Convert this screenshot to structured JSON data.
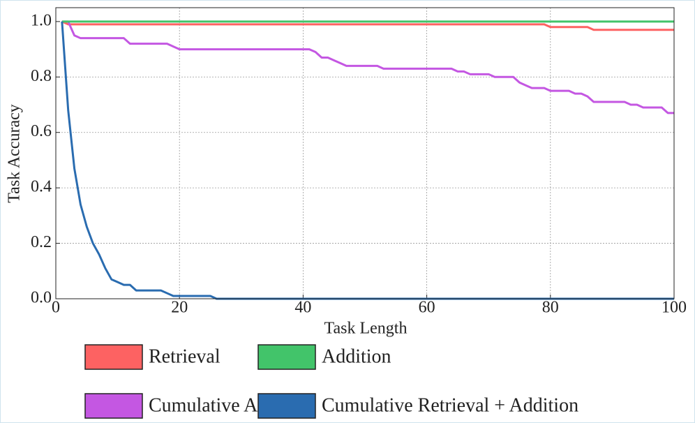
{
  "chart_data": {
    "type": "line",
    "x_label": "Task Length",
    "y_label": "Task Accuracy",
    "x": [
      1,
      2,
      3,
      4,
      5,
      6,
      7,
      8,
      9,
      10,
      11,
      12,
      13,
      14,
      15,
      16,
      17,
      18,
      19,
      20,
      21,
      22,
      23,
      24,
      25,
      26,
      27,
      28,
      29,
      30,
      31,
      32,
      33,
      34,
      35,
      36,
      37,
      38,
      39,
      40,
      41,
      42,
      43,
      44,
      45,
      46,
      47,
      48,
      49,
      50,
      51,
      52,
      53,
      54,
      55,
      56,
      57,
      58,
      59,
      60,
      61,
      62,
      63,
      64,
      65,
      66,
      67,
      68,
      69,
      70,
      71,
      72,
      73,
      74,
      75,
      76,
      77,
      78,
      79,
      80,
      81,
      82,
      83,
      84,
      85,
      86,
      87,
      88,
      89,
      90,
      91,
      92,
      93,
      94,
      95,
      96,
      97,
      98,
      99,
      100
    ],
    "series": [
      {
        "name": "Retrieval",
        "color": "#fd6262",
        "values": [
          1.0,
          0.99,
          0.99,
          0.99,
          0.99,
          0.99,
          0.99,
          0.99,
          0.99,
          0.99,
          0.99,
          0.99,
          0.99,
          0.99,
          0.99,
          0.99,
          0.99,
          0.99,
          0.99,
          0.99,
          0.99,
          0.99,
          0.99,
          0.99,
          0.99,
          0.99,
          0.99,
          0.99,
          0.99,
          0.99,
          0.99,
          0.99,
          0.99,
          0.99,
          0.99,
          0.99,
          0.99,
          0.99,
          0.99,
          0.99,
          0.99,
          0.99,
          0.99,
          0.99,
          0.99,
          0.99,
          0.99,
          0.99,
          0.99,
          0.99,
          0.99,
          0.99,
          0.99,
          0.99,
          0.99,
          0.99,
          0.99,
          0.99,
          0.99,
          0.99,
          0.99,
          0.99,
          0.99,
          0.99,
          0.99,
          0.99,
          0.99,
          0.99,
          0.99,
          0.99,
          0.99,
          0.99,
          0.99,
          0.99,
          0.99,
          0.99,
          0.99,
          0.99,
          0.99,
          0.98,
          0.98,
          0.98,
          0.98,
          0.98,
          0.98,
          0.98,
          0.97,
          0.97,
          0.97,
          0.97,
          0.97,
          0.97,
          0.97,
          0.97,
          0.97,
          0.97,
          0.97,
          0.97,
          0.97,
          0.97
        ]
      },
      {
        "name": "Cumulative Addition",
        "color": "#c457e2",
        "values": [
          1.0,
          1.0,
          0.95,
          0.94,
          0.94,
          0.94,
          0.94,
          0.94,
          0.94,
          0.94,
          0.94,
          0.92,
          0.92,
          0.92,
          0.92,
          0.92,
          0.92,
          0.92,
          0.91,
          0.9,
          0.9,
          0.9,
          0.9,
          0.9,
          0.9,
          0.9,
          0.9,
          0.9,
          0.9,
          0.9,
          0.9,
          0.9,
          0.9,
          0.9,
          0.9,
          0.9,
          0.9,
          0.9,
          0.9,
          0.9,
          0.9,
          0.89,
          0.87,
          0.87,
          0.86,
          0.85,
          0.84,
          0.84,
          0.84,
          0.84,
          0.84,
          0.84,
          0.83,
          0.83,
          0.83,
          0.83,
          0.83,
          0.83,
          0.83,
          0.83,
          0.83,
          0.83,
          0.83,
          0.83,
          0.82,
          0.82,
          0.81,
          0.81,
          0.81,
          0.81,
          0.8,
          0.8,
          0.8,
          0.8,
          0.78,
          0.77,
          0.76,
          0.76,
          0.76,
          0.75,
          0.75,
          0.75,
          0.75,
          0.74,
          0.74,
          0.73,
          0.71,
          0.71,
          0.71,
          0.71,
          0.71,
          0.71,
          0.7,
          0.7,
          0.69,
          0.69,
          0.69,
          0.69,
          0.67,
          0.67
        ]
      },
      {
        "name": "Addition",
        "color": "#42c46a",
        "values": [
          1.0,
          1.0,
          1.0,
          1.0,
          1.0,
          1.0,
          1.0,
          1.0,
          1.0,
          1.0,
          1.0,
          1.0,
          1.0,
          1.0,
          1.0,
          1.0,
          1.0,
          1.0,
          1.0,
          1.0,
          1.0,
          1.0,
          1.0,
          1.0,
          1.0,
          1.0,
          1.0,
          1.0,
          1.0,
          1.0,
          1.0,
          1.0,
          1.0,
          1.0,
          1.0,
          1.0,
          1.0,
          1.0,
          1.0,
          1.0,
          1.0,
          1.0,
          1.0,
          1.0,
          1.0,
          1.0,
          1.0,
          1.0,
          1.0,
          1.0,
          1.0,
          1.0,
          1.0,
          1.0,
          1.0,
          1.0,
          1.0,
          1.0,
          1.0,
          1.0,
          1.0,
          1.0,
          1.0,
          1.0,
          1.0,
          1.0,
          1.0,
          1.0,
          1.0,
          1.0,
          1.0,
          1.0,
          1.0,
          1.0,
          1.0,
          1.0,
          1.0,
          1.0,
          1.0,
          1.0,
          1.0,
          1.0,
          1.0,
          1.0,
          1.0,
          1.0,
          1.0,
          1.0,
          1.0,
          1.0,
          1.0,
          1.0,
          1.0,
          1.0,
          1.0,
          1.0,
          1.0,
          1.0,
          1.0,
          1.0
        ]
      },
      {
        "name": "Cumulative Retrieval + Addition",
        "color": "#2a6cb0",
        "values": [
          1.0,
          0.68,
          0.47,
          0.34,
          0.26,
          0.2,
          0.16,
          0.11,
          0.07,
          0.06,
          0.05,
          0.05,
          0.03,
          0.03,
          0.03,
          0.03,
          0.03,
          0.02,
          0.01,
          0.01,
          0.01,
          0.01,
          0.01,
          0.01,
          0.01,
          0,
          0,
          0,
          0,
          0,
          0,
          0,
          0,
          0,
          0,
          0,
          0,
          0,
          0,
          0,
          0,
          0,
          0,
          0,
          0,
          0,
          0,
          0,
          0,
          0,
          0,
          0,
          0,
          0,
          0,
          0,
          0,
          0,
          0,
          0,
          0,
          0,
          0,
          0,
          0,
          0,
          0,
          0,
          0,
          0,
          0,
          0,
          0,
          0,
          0,
          0,
          0,
          0,
          0,
          0,
          0,
          0,
          0,
          0,
          0,
          0,
          0,
          0,
          0,
          0,
          0,
          0,
          0,
          0,
          0,
          0,
          0,
          0,
          0,
          0
        ]
      }
    ],
    "xlim": [
      0,
      100
    ],
    "ylim": [
      0,
      1.05
    ],
    "xticks": [
      0,
      20,
      40,
      60,
      80,
      100
    ],
    "yticks": [
      {
        "value": 0,
        "label": "0.0"
      },
      0.2,
      0.4,
      0.6,
      0.8,
      {
        "value": 1,
        "label": "1.0"
      }
    ],
    "grid": true,
    "legend": "bottom"
  }
}
